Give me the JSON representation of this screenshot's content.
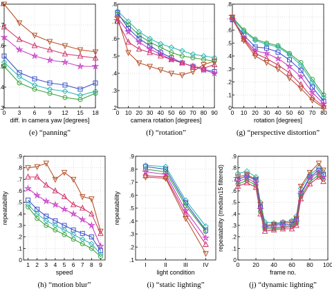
{
  "chart_data": [
    {
      "type": "line",
      "caption": "(e) “panning”",
      "xlabel": "diff. in camera yaw [degrees]",
      "ylabel": "",
      "xlim": [
        0,
        18
      ],
      "ylim": [
        0.3,
        0.8
      ],
      "xticks": [
        "0",
        "3",
        "6",
        "9",
        "12",
        "15",
        "18"
      ],
      "xtick_values": [
        0,
        3,
        6,
        9,
        12,
        15,
        18
      ],
      "yticks": [
        ".3",
        ".4",
        ".5",
        ".6",
        ".7",
        ".8"
      ],
      "ytick_values": [
        0.3,
        0.4,
        0.5,
        0.6,
        0.7,
        0.8
      ],
      "x": [
        0,
        3,
        6,
        9,
        12,
        15,
        18
      ],
      "grid": true,
      "series": [
        {
          "color": "#b5532b",
          "marker": "tri-down",
          "values": [
            0.8,
            0.71,
            0.65,
            0.62,
            0.6,
            0.58,
            0.57
          ]
        },
        {
          "color": "#d1346b",
          "marker": "tri-up",
          "values": [
            0.69,
            0.63,
            0.6,
            0.58,
            0.56,
            0.55,
            0.54
          ]
        },
        {
          "color": "#c83fc8",
          "marker": "star",
          "values": [
            0.64,
            0.58,
            0.55,
            0.53,
            0.52,
            0.5,
            0.5
          ]
        },
        {
          "color": "#3a52c8",
          "marker": "square",
          "values": [
            0.55,
            0.47,
            0.44,
            0.42,
            0.41,
            0.39,
            0.42
          ]
        },
        {
          "color": "#2fb7b7",
          "marker": "diamond",
          "values": [
            0.52,
            0.45,
            0.41,
            0.39,
            0.38,
            0.36,
            0.38
          ]
        },
        {
          "color": "#3aa33a",
          "marker": "circle",
          "values": [
            0.5,
            0.42,
            0.39,
            0.37,
            0.35,
            0.34,
            0.37
          ]
        }
      ]
    },
    {
      "type": "line",
      "caption": "(f) “rotation”",
      "xlabel": "camera rotation [degrees]",
      "ylabel": "",
      "xlim": [
        0,
        90
      ],
      "ylim": [
        0.2,
        0.8
      ],
      "xticks": [
        "0",
        "10",
        "20",
        "30",
        "40",
        "50",
        "60",
        "70",
        "80",
        "90"
      ],
      "xtick_values": [
        0,
        10,
        20,
        30,
        40,
        50,
        60,
        70,
        80,
        90
      ],
      "yticks": [
        ".2",
        ".3",
        ".4",
        ".5",
        ".6",
        ".7",
        ".8"
      ],
      "ytick_values": [
        0.2,
        0.3,
        0.4,
        0.5,
        0.6,
        0.7,
        0.8
      ],
      "x": [
        0,
        10,
        20,
        30,
        40,
        50,
        60,
        70,
        80,
        90
      ],
      "grid": true,
      "series": [
        {
          "color": "#2fb7b7",
          "marker": "diamond",
          "values": [
            0.76,
            0.7,
            0.64,
            0.6,
            0.57,
            0.55,
            0.53,
            0.51,
            0.5,
            0.49
          ]
        },
        {
          "color": "#3aa33a",
          "marker": "circle",
          "values": [
            0.74,
            0.68,
            0.62,
            0.58,
            0.55,
            0.52,
            0.5,
            0.49,
            0.48,
            0.47
          ]
        },
        {
          "color": "#3a52c8",
          "marker": "square",
          "values": [
            0.75,
            0.66,
            0.6,
            0.56,
            0.52,
            0.49,
            0.46,
            0.44,
            0.42,
            0.41
          ]
        },
        {
          "color": "#c83fc8",
          "marker": "star",
          "values": [
            0.72,
            0.64,
            0.58,
            0.54,
            0.51,
            0.48,
            0.46,
            0.44,
            0.42,
            0.4
          ]
        },
        {
          "color": "#d1346b",
          "marker": "tri-up",
          "values": [
            0.7,
            0.58,
            0.54,
            0.52,
            0.5,
            0.48,
            0.46,
            0.44,
            0.43,
            0.45
          ]
        },
        {
          "color": "#b5532b",
          "marker": "tri-down",
          "values": [
            0.72,
            0.52,
            0.46,
            0.44,
            0.42,
            0.4,
            0.39,
            0.41,
            0.45,
            0.47
          ]
        }
      ]
    },
    {
      "type": "line",
      "caption": "(g) “perspective distortion”",
      "xlabel": "rotation [degrees]",
      "ylabel": "",
      "xlim": [
        0,
        80
      ],
      "ylim": [
        0,
        0.8
      ],
      "xticks": [
        "0",
        "10",
        "20",
        "30",
        "40",
        "50",
        "60",
        "70",
        "80"
      ],
      "xtick_values": [
        0,
        10,
        20,
        30,
        40,
        50,
        60,
        70,
        80
      ],
      "yticks": [
        "0",
        ".1",
        ".2",
        ".3",
        ".4",
        ".5",
        ".6",
        ".7",
        ".8"
      ],
      "ytick_values": [
        0,
        0.1,
        0.2,
        0.3,
        0.4,
        0.5,
        0.6,
        0.7,
        0.8
      ],
      "x": [
        0,
        10,
        20,
        30,
        40,
        50,
        60,
        70,
        80
      ],
      "grid": true,
      "series": [
        {
          "color": "#3aa33a",
          "marker": "circle",
          "values": [
            0.7,
            0.6,
            0.53,
            0.5,
            0.48,
            0.42,
            0.35,
            0.22,
            0.1
          ]
        },
        {
          "color": "#2fb7b7",
          "marker": "diamond",
          "values": [
            0.69,
            0.59,
            0.52,
            0.49,
            0.47,
            0.41,
            0.33,
            0.2,
            0.08
          ]
        },
        {
          "color": "#3a52c8",
          "marker": "square",
          "values": [
            0.68,
            0.56,
            0.47,
            0.46,
            0.43,
            0.37,
            0.29,
            0.16,
            0.05
          ]
        },
        {
          "color": "#c83fc8",
          "marker": "star",
          "values": [
            0.68,
            0.54,
            0.44,
            0.42,
            0.38,
            0.32,
            0.24,
            0.12,
            0.03
          ]
        },
        {
          "color": "#d1346b",
          "marker": "tri-up",
          "values": [
            0.7,
            0.53,
            0.42,
            0.38,
            0.33,
            0.27,
            0.18,
            0.08,
            0.01
          ]
        },
        {
          "color": "#b5532b",
          "marker": "tri-down",
          "values": [
            0.7,
            0.52,
            0.4,
            0.35,
            0.3,
            0.23,
            0.15,
            0.06,
            0.0
          ]
        }
      ]
    },
    {
      "type": "line",
      "caption": "(h) “motion blur”",
      "xlabel": "speed",
      "ylabel": "repeatability",
      "xlim": [
        0.5,
        9.5
      ],
      "ylim": [
        0,
        0.9
      ],
      "xticks": [
        "1",
        "2",
        "3",
        "4",
        "5",
        "6",
        "7",
        "8",
        "9"
      ],
      "xtick_values": [
        1,
        2,
        3,
        4,
        5,
        6,
        7,
        8,
        9
      ],
      "yticks": [
        "0",
        ".1",
        ".2",
        ".3",
        ".4",
        ".5",
        ".6",
        ".7",
        ".8",
        ".9"
      ],
      "ytick_values": [
        0,
        0.1,
        0.2,
        0.3,
        0.4,
        0.5,
        0.6,
        0.7,
        0.8,
        0.9
      ],
      "x": [
        1,
        2,
        3,
        4,
        5,
        6,
        7,
        8,
        9
      ],
      "grid": true,
      "series": [
        {
          "color": "#b5532b",
          "marker": "tri-down",
          "values": [
            0.8,
            0.81,
            0.84,
            0.7,
            0.76,
            0.7,
            0.55,
            0.53,
            0.25
          ]
        },
        {
          "color": "#d1346b",
          "marker": "tri-up",
          "values": [
            0.72,
            0.72,
            0.65,
            0.6,
            0.55,
            0.48,
            0.45,
            0.4,
            0.23
          ]
        },
        {
          "color": "#c83fc8",
          "marker": "star",
          "values": [
            0.62,
            0.56,
            0.51,
            0.48,
            0.44,
            0.4,
            0.35,
            0.3,
            0.12
          ]
        },
        {
          "color": "#3a52c8",
          "marker": "square",
          "values": [
            0.52,
            0.44,
            0.38,
            0.34,
            0.3,
            0.26,
            0.23,
            0.2,
            0.08
          ]
        },
        {
          "color": "#2fb7b7",
          "marker": "diamond",
          "values": [
            0.48,
            0.4,
            0.34,
            0.3,
            0.26,
            0.22,
            0.18,
            0.14,
            0.05
          ]
        },
        {
          "color": "#3aa33a",
          "marker": "circle",
          "values": [
            0.46,
            0.36,
            0.3,
            0.26,
            0.22,
            0.18,
            0.14,
            0.1,
            0.03
          ]
        }
      ]
    },
    {
      "type": "line",
      "caption": "(i) “static lighting”",
      "xlabel": "light condition",
      "ylabel": "repeatability",
      "xlim": [
        0.5,
        4.5
      ],
      "ylim": [
        0.1,
        0.9
      ],
      "xticks": [
        "I",
        "II",
        "III",
        "IV"
      ],
      "xtick_values": [
        1,
        2,
        3,
        4
      ],
      "yticks": [
        ".1",
        ".2",
        ".3",
        ".4",
        ".5",
        ".6",
        ".7",
        ".8",
        ".9"
      ],
      "ytick_values": [
        0.1,
        0.2,
        0.3,
        0.4,
        0.5,
        0.6,
        0.7,
        0.8,
        0.9
      ],
      "x": [
        1,
        2,
        3,
        4
      ],
      "grid": true,
      "series": [
        {
          "color": "#2fb7b7",
          "marker": "diamond",
          "values": [
            0.83,
            0.82,
            0.56,
            0.36
          ]
        },
        {
          "color": "#3a52c8",
          "marker": "square",
          "values": [
            0.82,
            0.8,
            0.54,
            0.33
          ]
        },
        {
          "color": "#3aa33a",
          "marker": "circle",
          "values": [
            0.8,
            0.78,
            0.52,
            0.32
          ]
        },
        {
          "color": "#c83fc8",
          "marker": "star",
          "values": [
            0.78,
            0.76,
            0.48,
            0.27
          ]
        },
        {
          "color": "#d1346b",
          "marker": "tri-up",
          "values": [
            0.75,
            0.74,
            0.45,
            0.22
          ]
        },
        {
          "color": "#b5532b",
          "marker": "tri-down",
          "values": [
            0.74,
            0.73,
            0.42,
            0.15
          ]
        }
      ]
    },
    {
      "type": "line",
      "caption": "(j) “dynamic lighting”",
      "xlabel": "frame no.",
      "ylabel": "repeatability (median15 filtered)",
      "xlim": [
        0,
        100
      ],
      "ylim": [
        0,
        0.9
      ],
      "xticks": [
        "0",
        "20",
        "40",
        "60",
        "80",
        "100"
      ],
      "xtick_values": [
        0,
        20,
        40,
        60,
        80,
        100
      ],
      "yticks": [
        "0",
        ".1",
        ".2",
        ".3",
        ".4",
        ".5",
        ".6",
        ".7",
        ".8",
        ".9"
      ],
      "ytick_values": [
        0,
        0.1,
        0.2,
        0.3,
        0.4,
        0.5,
        0.6,
        0.7,
        0.8,
        0.9
      ],
      "x": [
        0,
        10,
        20,
        25,
        30,
        40,
        50,
        60,
        65,
        70,
        80,
        90,
        95
      ],
      "grid": true,
      "series": [
        {
          "color": "#2fb7b7",
          "marker": "diamond",
          "values": [
            0.75,
            0.77,
            0.72,
            0.5,
            0.33,
            0.32,
            0.33,
            0.34,
            0.38,
            0.62,
            0.74,
            0.8,
            0.76
          ]
        },
        {
          "color": "#b5532b",
          "marker": "tri-down",
          "values": [
            0.72,
            0.74,
            0.7,
            0.48,
            0.3,
            0.31,
            0.32,
            0.33,
            0.36,
            0.64,
            0.76,
            0.84,
            0.78
          ]
        },
        {
          "color": "#3a52c8",
          "marker": "square",
          "values": [
            0.7,
            0.73,
            0.69,
            0.46,
            0.29,
            0.3,
            0.31,
            0.31,
            0.35,
            0.58,
            0.72,
            0.78,
            0.74
          ]
        },
        {
          "color": "#c83fc8",
          "marker": "star",
          "values": [
            0.68,
            0.71,
            0.67,
            0.44,
            0.28,
            0.28,
            0.29,
            0.3,
            0.33,
            0.57,
            0.71,
            0.76,
            0.72
          ]
        },
        {
          "color": "#3aa33a",
          "marker": "circle",
          "values": [
            0.66,
            0.69,
            0.65,
            0.42,
            0.27,
            0.27,
            0.28,
            0.29,
            0.32,
            0.55,
            0.68,
            0.74,
            0.7
          ]
        },
        {
          "color": "#d1346b",
          "marker": "tri-up",
          "values": [
            0.64,
            0.67,
            0.63,
            0.4,
            0.25,
            0.26,
            0.27,
            0.27,
            0.3,
            0.53,
            0.66,
            0.72,
            0.68
          ]
        }
      ]
    }
  ]
}
